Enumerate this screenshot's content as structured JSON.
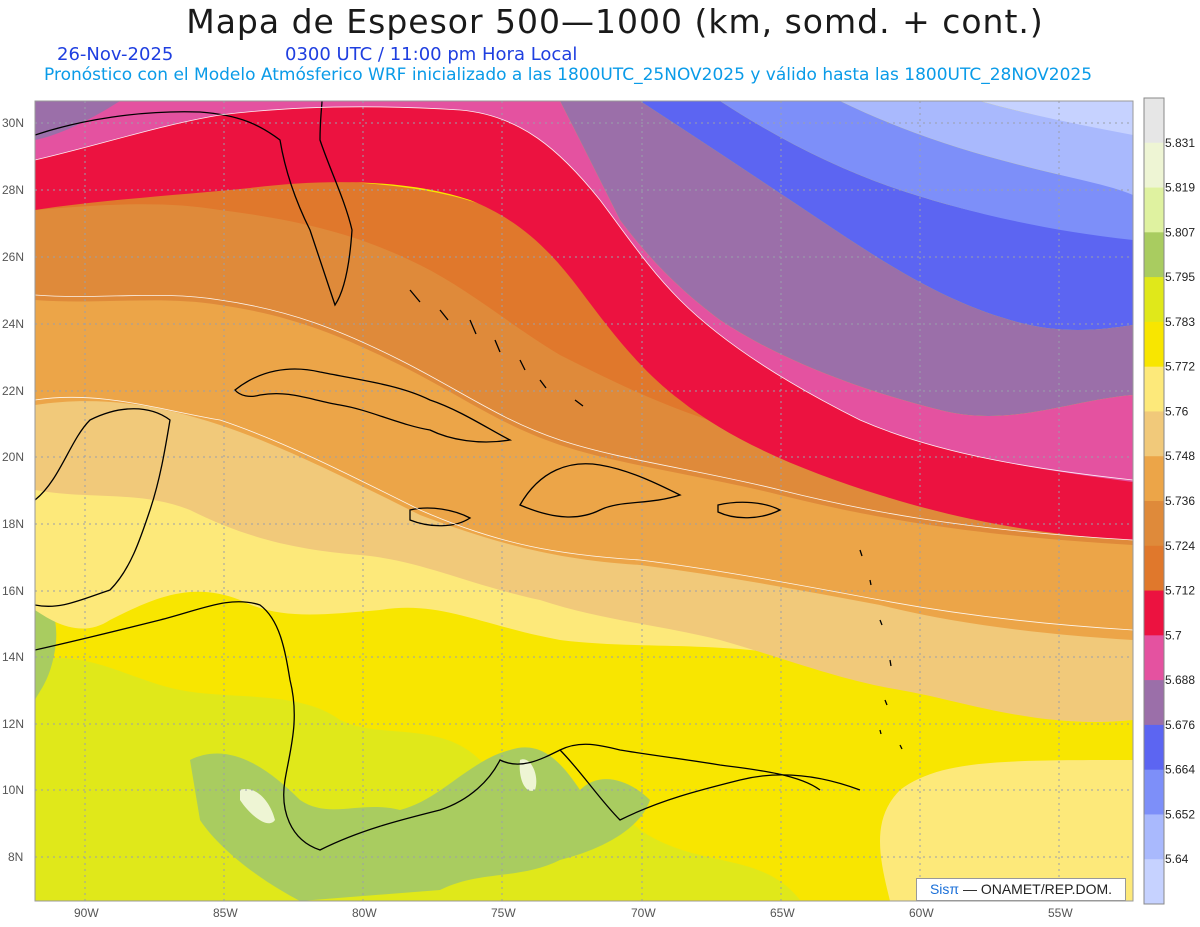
{
  "header": {
    "title": "Mapa de Espesor 500—1000 (km, somd. + cont.)",
    "date": "26-Nov-2025",
    "time": "0300 UTC / 11:00 pm Hora Local",
    "model_line": "Pronóstico con el Modelo Atmósferico WRF inicializado a las 1800UTC_25NOV2025 y válido hasta las  1800UTC_28NOV2025"
  },
  "axes": {
    "lat_labels": [
      "30N",
      "28N",
      "26N",
      "24N",
      "22N",
      "20N",
      "18N",
      "16N",
      "14N",
      "12N",
      "10N",
      "8N"
    ],
    "lon_labels": [
      "90W",
      "85W",
      "80W",
      "75W",
      "70W",
      "65W",
      "60W",
      "55W"
    ]
  },
  "colorbar": {
    "levels": [
      "5.831",
      "5.819",
      "5.807",
      "5.795",
      "5.783",
      "5.772",
      "5.76",
      "5.748",
      "5.736",
      "5.724",
      "5.712",
      "5.7",
      "5.688",
      "5.676",
      "5.664",
      "5.652",
      "5.64"
    ],
    "colors": [
      "#e6e6e6",
      "#eef5d4",
      "#dff2a0",
      "#a9cc60",
      "#e0e81a",
      "#f8e600",
      "#fde97a",
      "#f1c97a",
      "#eca548",
      "#df8a3a",
      "#e0782c",
      "#ec1240",
      "#e452a0",
      "#9b6fa9",
      "#5c65f2",
      "#7d8ff9",
      "#a9b9fd",
      "#c6d2ff"
    ]
  },
  "credit": {
    "brand": "Sisπ",
    "text": " — ONAMET/REP.DOM."
  },
  "colors": {
    "purple_band": "#9b6fa9",
    "magenta_band": "#e452a0",
    "red_band": "#ec1240",
    "dark_orange": "#df7c36",
    "orange": "#e79744",
    "light_orange": "#eeb460",
    "tan": "#f1c97a",
    "pale_yellow": "#fde97a",
    "yellow": "#f8e600",
    "lime": "#e0e81a",
    "green": "#a9cc60",
    "pale_green": "#eef5d4",
    "blue": "#5c65f2",
    "light_blue": "#7d8ff9",
    "lighter_blue": "#a9b9fd",
    "palest_blue": "#c6d2ff"
  }
}
